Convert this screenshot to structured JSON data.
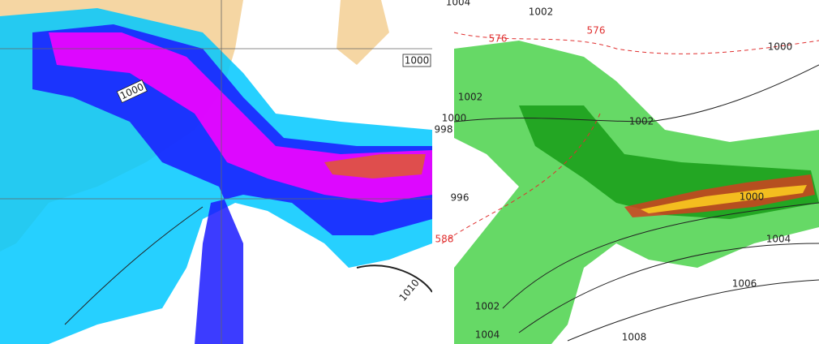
{
  "left_map": {
    "labels": [
      "1000",
      "1000",
      "1010"
    ]
  },
  "right_map": {
    "labels": [
      "1004",
      "1002",
      "576",
      "576",
      "1000",
      "1002",
      "1000",
      "998",
      "1002",
      "996",
      "588",
      "1000",
      "1004",
      "1006",
      "1002",
      "1004",
      "1008"
    ]
  }
}
